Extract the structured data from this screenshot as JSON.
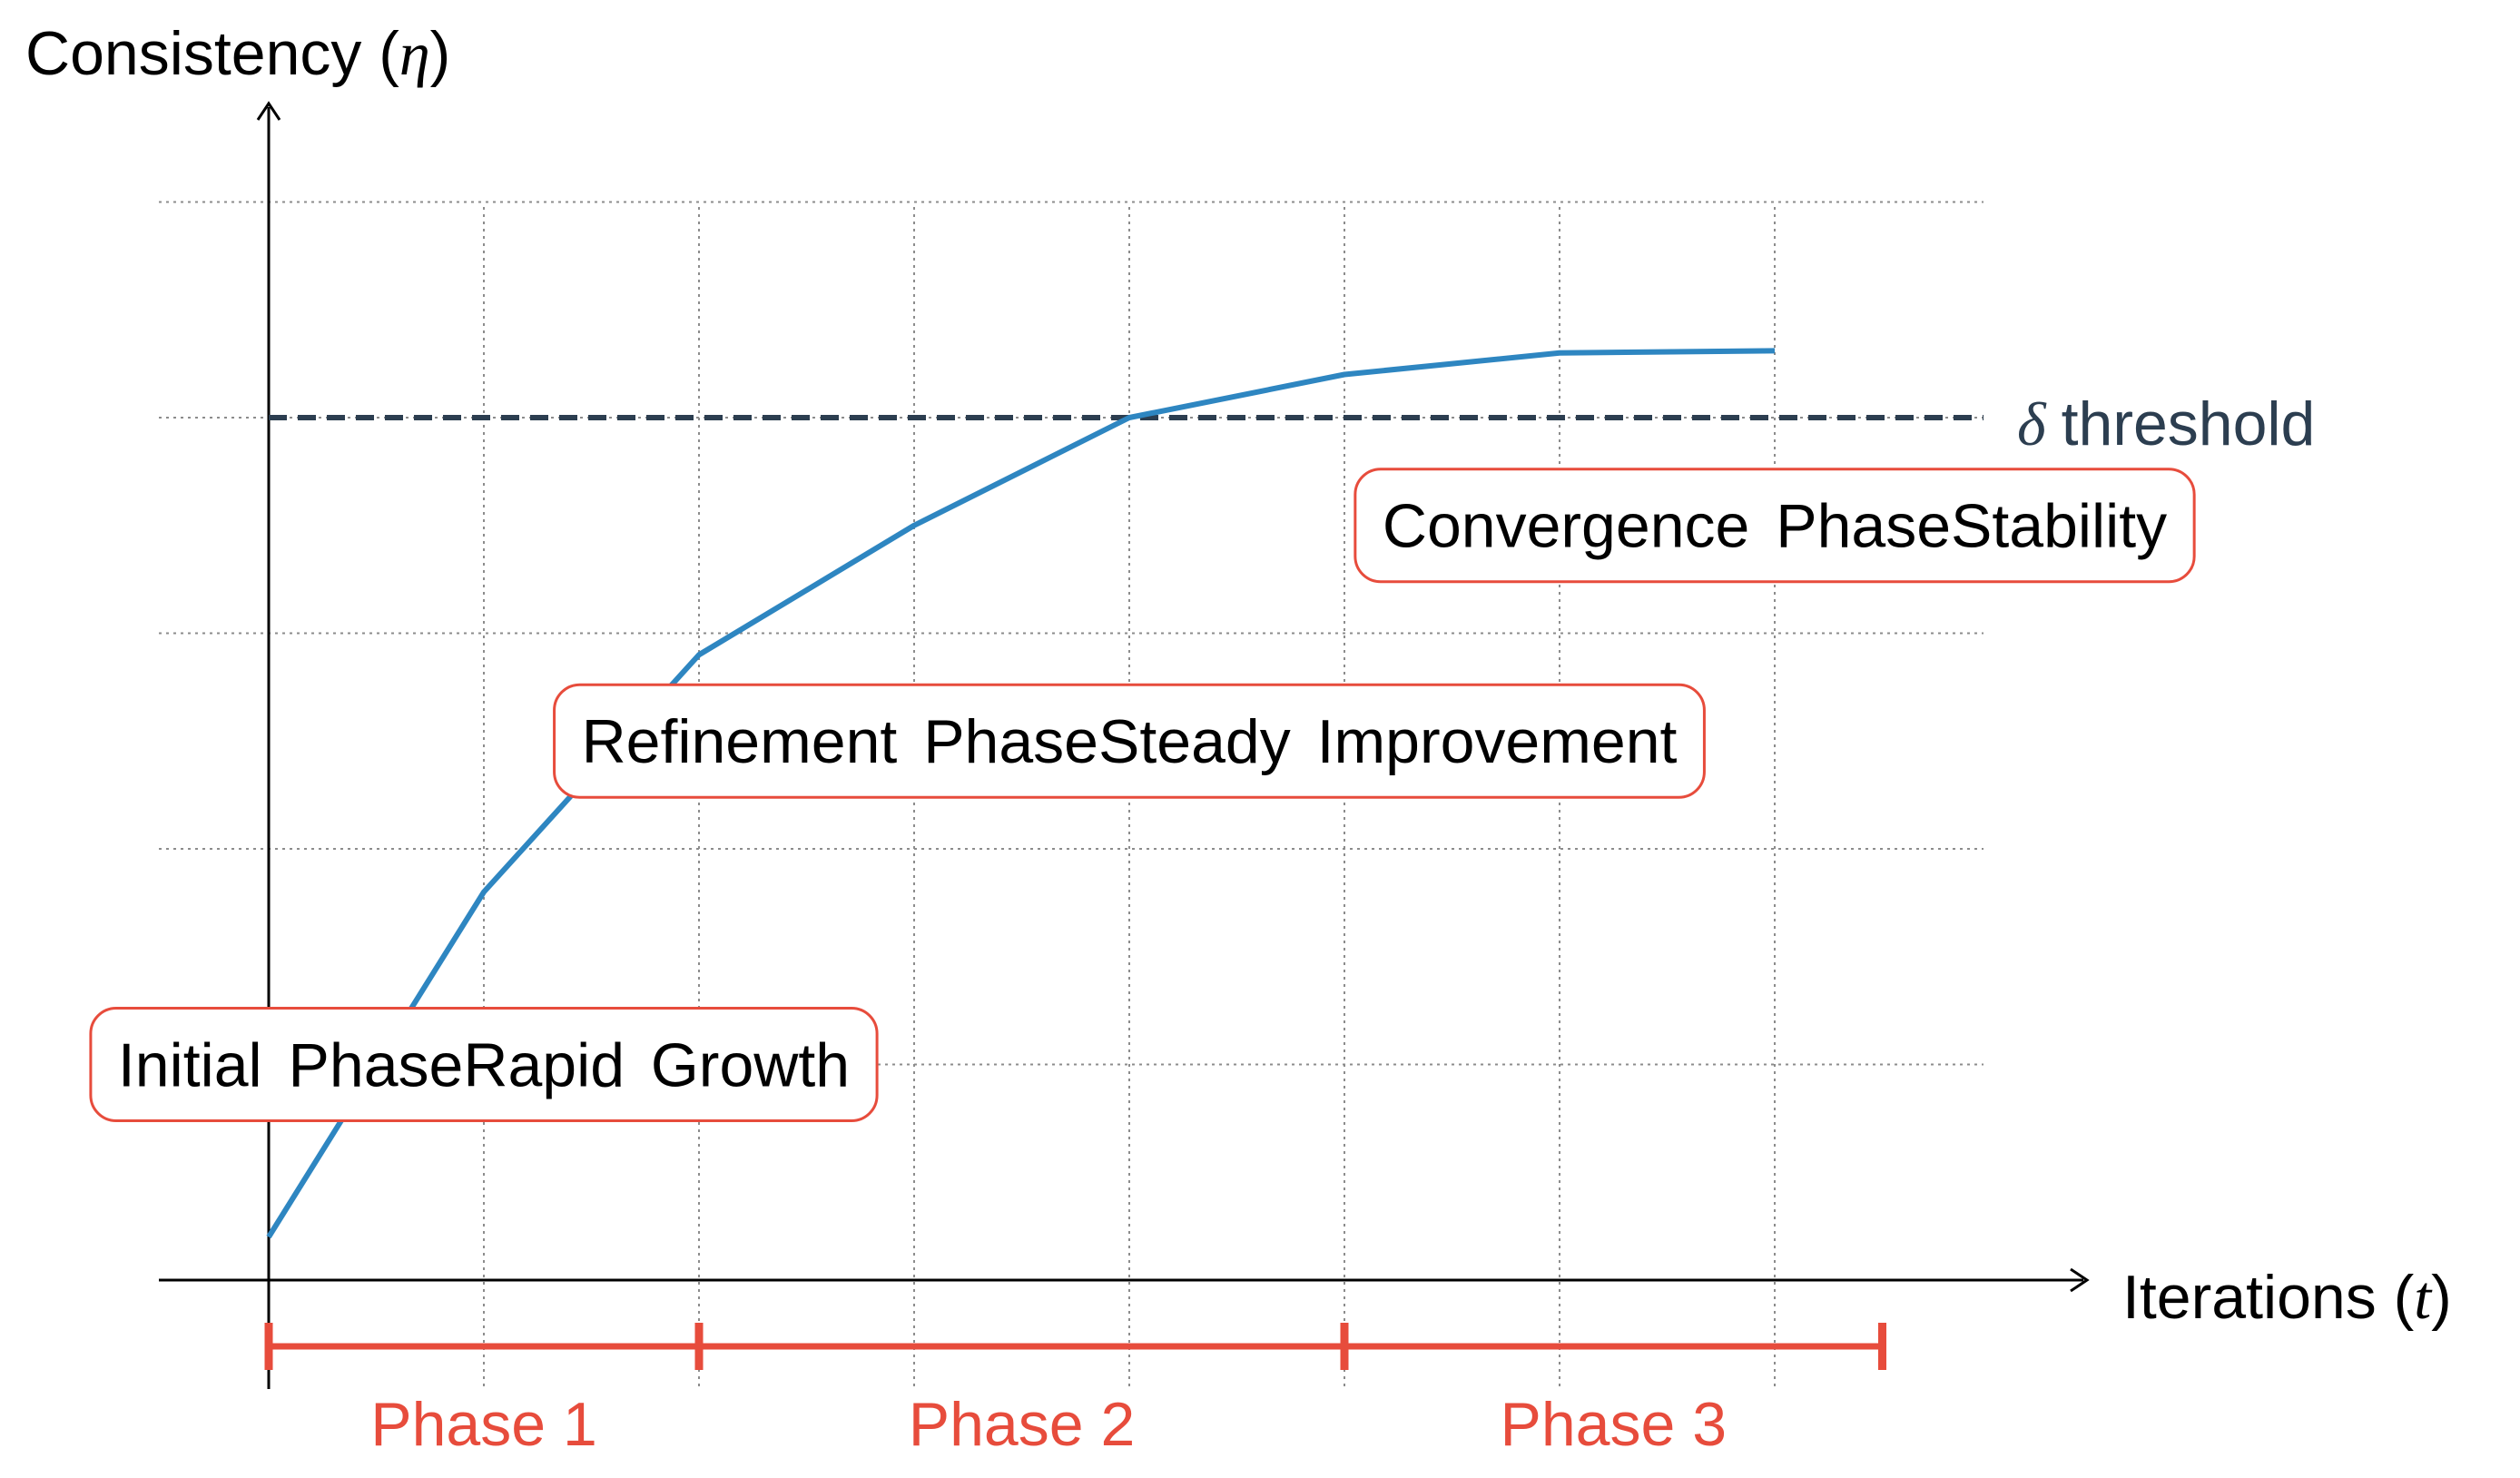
{
  "chart_data": {
    "type": "line",
    "y_axis_label": "Consistency",
    "y_axis_symbol": "η",
    "x_axis_label": "Iterations",
    "x_axis_symbol": "t",
    "xlim": [
      -0.5,
      8
    ],
    "ylim": [
      -0.2,
      5.0
    ],
    "grid": true,
    "series": [
      {
        "x": [
          0,
          1,
          2,
          3,
          4,
          5,
          6,
          7
        ],
        "y": [
          0.2,
          1.8,
          2.9,
          3.5,
          4.0,
          4.2,
          4.3,
          4.31
        ],
        "color": "#2e86c1"
      }
    ],
    "threshold": {
      "symbol": "δ",
      "label": "threshold",
      "value": 4.0,
      "color": "#2c3e50"
    },
    "annotations": [
      {
        "text": "Initial PhaseRapid Growth",
        "x": 1,
        "y": 1.0
      },
      {
        "text": "Refinement PhaseSteady Improvement",
        "x": 4,
        "y": 2.5
      },
      {
        "text": "Convergence PhaseStability",
        "x": 7,
        "y": 3.5
      }
    ],
    "phases": [
      {
        "label": "Phase 1",
        "start": 0,
        "end": 2
      },
      {
        "label": "Phase 2",
        "start": 2,
        "end": 5
      },
      {
        "label": "Phase 3",
        "start": 5,
        "end": 7.5
      }
    ],
    "phase_color": "#e74c3c",
    "annotation_border_color": "#e74c3c"
  }
}
